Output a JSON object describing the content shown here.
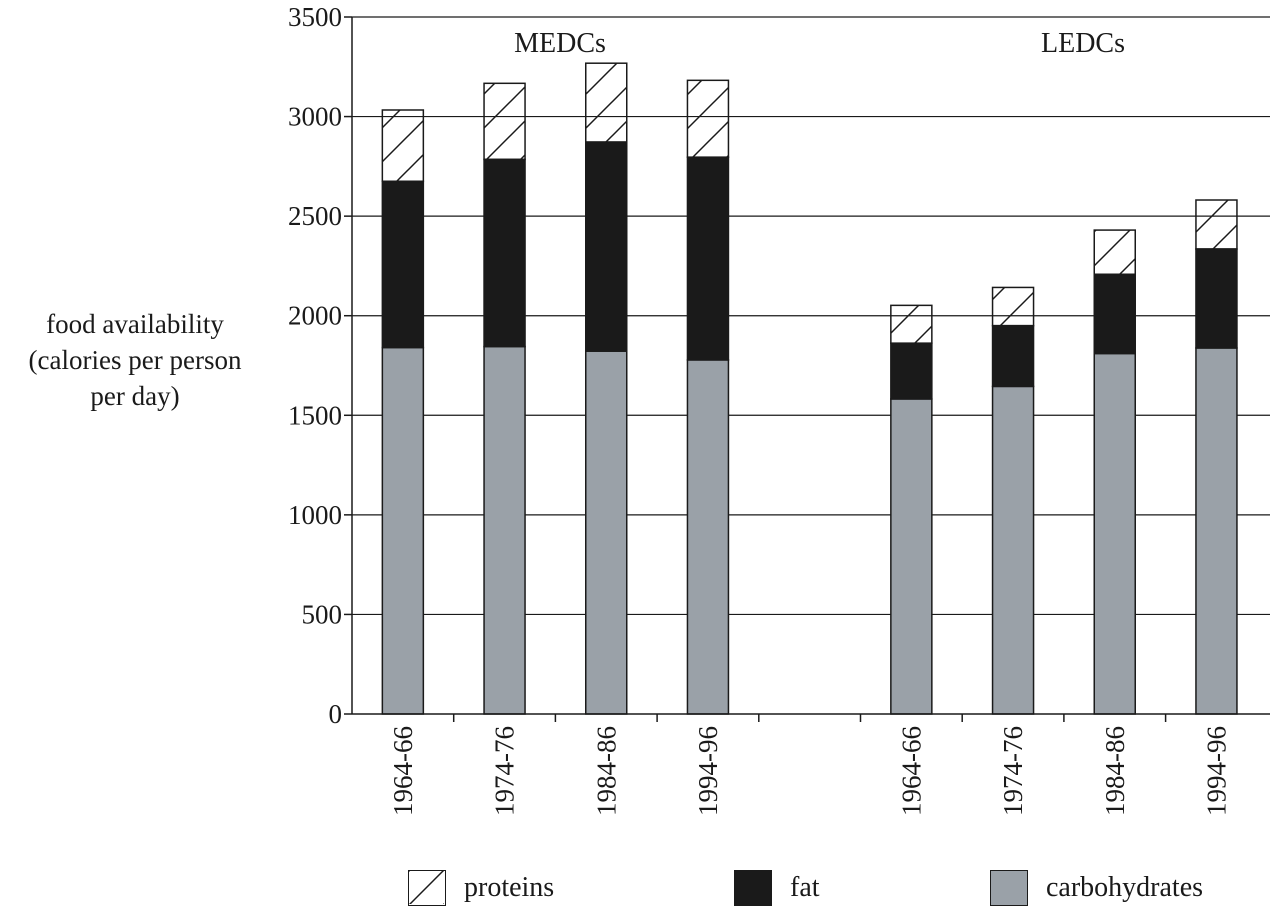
{
  "chart_data": {
    "type": "bar",
    "stacked": true,
    "groups": [
      {
        "label": "MEDCs",
        "categories": [
          "1964-66",
          "1974-76",
          "1984-86",
          "1994-96"
        ]
      },
      {
        "label": "LEDCs",
        "categories": [
          "1964-66",
          "1974-76",
          "1984-86",
          "1994-96"
        ]
      }
    ],
    "series": [
      {
        "name": "carbohydrates",
        "color": "#9aa1a8",
        "values": [
          1840,
          1845,
          1822,
          1778,
          1582,
          1645,
          1810,
          1838
        ]
      },
      {
        "name": "fat",
        "color": "#1a1a1a",
        "values": [
          835,
          940,
          1050,
          1018,
          280,
          305,
          398,
          497
        ]
      },
      {
        "name": "proteins",
        "color": "#ffffff",
        "pattern": "diagonal-hatch",
        "values": [
          358,
          382,
          396,
          386,
          190,
          192,
          222,
          246
        ]
      }
    ],
    "ylabel_lines": [
      "food availability",
      "(calories per person",
      "per day)"
    ],
    "ylim": [
      0,
      3500
    ],
    "yticks": [
      0,
      500,
      1000,
      1500,
      2000,
      2500,
      3000,
      3500
    ],
    "grid": true,
    "legend_position": "bottom"
  },
  "legend": {
    "proteins": "proteins",
    "fat": "fat",
    "carbohydrates": "carbohydrates"
  }
}
